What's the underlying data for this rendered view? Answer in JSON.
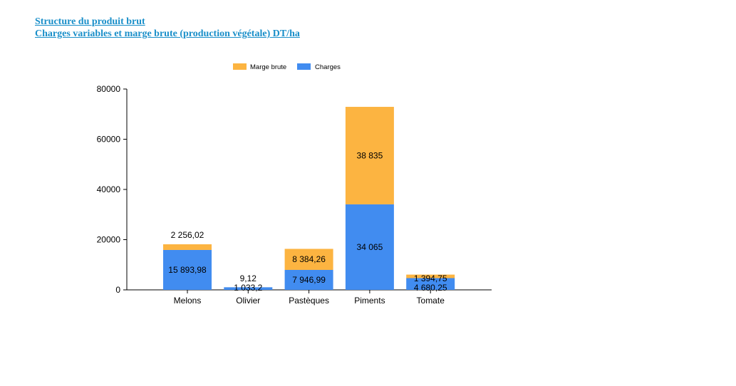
{
  "header": {
    "link1": "Structure du produit brut",
    "link2": "Charges variables et marge brute (production végétale) DT/ha"
  },
  "colors": {
    "charges": "#418cf0",
    "marge": "#fcb441",
    "axis": "#000000",
    "text": "#000000"
  },
  "chart_data": {
    "type": "bar",
    "stacked": true,
    "title": "",
    "xlabel": "",
    "ylabel": "",
    "ylim": [
      0,
      80000
    ],
    "yticks": [
      "0",
      "20000",
      "40000",
      "60000",
      "80000"
    ],
    "legend_position": "top",
    "grid": false,
    "categories": [
      "Melons",
      "Olivier",
      "Pastèques",
      "Piments",
      "Tomate"
    ],
    "series": [
      {
        "name": "Charges",
        "color": "#418cf0",
        "values": [
          15893.98,
          1033.2,
          7946.99,
          34065,
          4680.25
        ],
        "labels": [
          "15 893,98",
          "1 033,2",
          "7 946,99",
          "34 065",
          "4 680,25"
        ]
      },
      {
        "name": "Marge brute",
        "color": "#fcb441",
        "values": [
          2256.02,
          9.12,
          8384.26,
          38835,
          1394.75
        ],
        "labels": [
          "2 256,02",
          "9,12",
          "8 384,26",
          "38 835",
          "1 394,75"
        ]
      }
    ]
  }
}
